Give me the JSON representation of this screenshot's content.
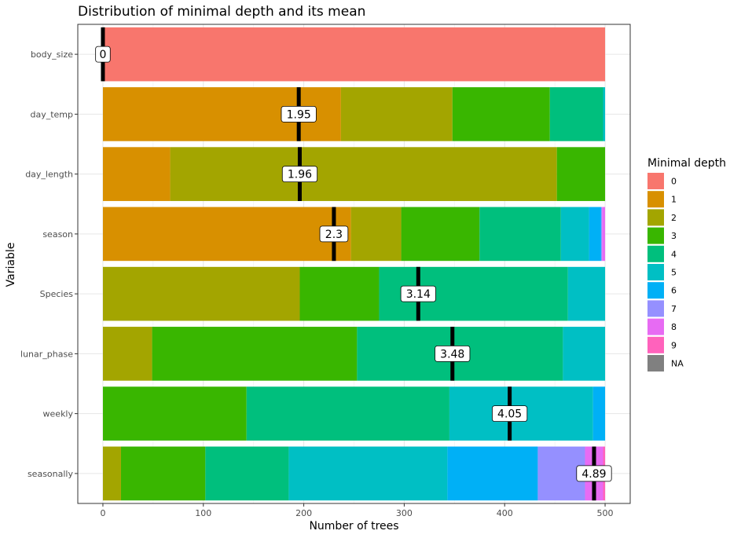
{
  "chart_data": {
    "type": "bar",
    "orientation": "horizontal",
    "stacked": true,
    "title": "Distribution of minimal depth and its mean",
    "xlabel": "Number of trees",
    "ylabel": "Variable",
    "xlim": [
      -25,
      525
    ],
    "xticks": [
      0,
      100,
      200,
      300,
      400,
      500
    ],
    "grid": true,
    "legend": {
      "title": "Minimal depth",
      "position": "right",
      "entries": [
        {
          "label": "0",
          "color": "#F8766D"
        },
        {
          "label": "1",
          "color": "#D89000"
        },
        {
          "label": "2",
          "color": "#A3A500"
        },
        {
          "label": "3",
          "color": "#39B600"
        },
        {
          "label": "4",
          "color": "#00BF7D"
        },
        {
          "label": "5",
          "color": "#00BFC4"
        },
        {
          "label": "6",
          "color": "#00B0F6"
        },
        {
          "label": "7",
          "color": "#9590FF"
        },
        {
          "label": "8",
          "color": "#E76BF3"
        },
        {
          "label": "9",
          "color": "#FF62BC"
        },
        {
          "label": "NA",
          "color": "#808080"
        }
      ]
    },
    "categories": [
      "body_size",
      "day_temp",
      "day_length",
      "season",
      "Species",
      "lunar_phase",
      "weekly",
      "seasonally"
    ],
    "segments": [
      [
        {
          "depth": "0",
          "count": 500
        }
      ],
      [
        {
          "depth": "1",
          "count": 237
        },
        {
          "depth": "2",
          "count": 111
        },
        {
          "depth": "3",
          "count": 97
        },
        {
          "depth": "4",
          "count": 53
        },
        {
          "depth": "5",
          "count": 2
        }
      ],
      [
        {
          "depth": "1",
          "count": 67
        },
        {
          "depth": "2",
          "count": 385
        },
        {
          "depth": "3",
          "count": 48
        }
      ],
      [
        {
          "depth": "1",
          "count": 247
        },
        {
          "depth": "2",
          "count": 50
        },
        {
          "depth": "3",
          "count": 78
        },
        {
          "depth": "4",
          "count": 81
        },
        {
          "depth": "5",
          "count": 28
        },
        {
          "depth": "6",
          "count": 12
        },
        {
          "depth": "7",
          "count": 1
        },
        {
          "depth": "8",
          "count": 3
        }
      ],
      [
        {
          "depth": "2",
          "count": 196
        },
        {
          "depth": "3",
          "count": 79
        },
        {
          "depth": "4",
          "count": 188
        },
        {
          "depth": "5",
          "count": 37
        }
      ],
      [
        {
          "depth": "2",
          "count": 49
        },
        {
          "depth": "3",
          "count": 204
        },
        {
          "depth": "4",
          "count": 205
        },
        {
          "depth": "5",
          "count": 42
        }
      ],
      [
        {
          "depth": "3",
          "count": 143
        },
        {
          "depth": "4",
          "count": 202
        },
        {
          "depth": "5",
          "count": 143
        },
        {
          "depth": "6",
          "count": 12
        }
      ],
      [
        {
          "depth": "2",
          "count": 18
        },
        {
          "depth": "3",
          "count": 84
        },
        {
          "depth": "4",
          "count": 83
        },
        {
          "depth": "5",
          "count": 158
        },
        {
          "depth": "6",
          "count": 90
        },
        {
          "depth": "7",
          "count": 47
        },
        {
          "depth": "8",
          "count": 18
        },
        {
          "depth": "9",
          "count": 2
        }
      ]
    ],
    "means": [
      {
        "variable": "body_size",
        "mean": 0,
        "label": "0"
      },
      {
        "variable": "day_temp",
        "mean": 1.95,
        "label": "1.95"
      },
      {
        "variable": "day_length",
        "mean": 1.96,
        "label": "1.96"
      },
      {
        "variable": "season",
        "mean": 2.3,
        "label": "2.3"
      },
      {
        "variable": "Species",
        "mean": 3.14,
        "label": "3.14"
      },
      {
        "variable": "lunar_phase",
        "mean": 3.48,
        "label": "3.48"
      },
      {
        "variable": "weekly",
        "mean": 4.05,
        "label": "4.05"
      },
      {
        "variable": "seasonally",
        "mean": 4.89,
        "label": "4.89"
      }
    ]
  }
}
